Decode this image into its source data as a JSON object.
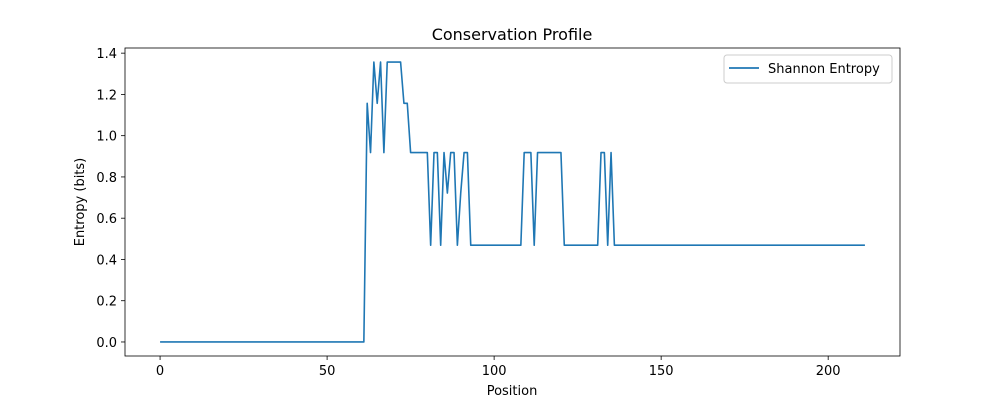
{
  "chart_data": {
    "type": "line",
    "title": "Conservation Profile",
    "xlabel": "Position",
    "ylabel": "Entropy (bits)",
    "xlim": [
      -10.5,
      221.5
    ],
    "ylim": [
      -0.068,
      1.425
    ],
    "x_ticks": [
      0,
      50,
      100,
      150,
      200
    ],
    "y_ticks": [
      0.0,
      0.2,
      0.4,
      0.6,
      0.8,
      1.0,
      1.2,
      1.4
    ],
    "x_tick_labels": [
      "0",
      "50",
      "100",
      "150",
      "200"
    ],
    "y_tick_labels": [
      "0.0",
      "0.2",
      "0.4",
      "0.6",
      "0.8",
      "1.0",
      "1.2",
      "1.4"
    ],
    "grid": false,
    "legend_position": "top-right",
    "series": [
      {
        "name": "Shannon Entropy",
        "color": "#1f77b4",
        "points": [
          [
            0,
            0.0
          ],
          [
            61,
            0.0
          ],
          [
            62,
            1.157
          ],
          [
            63,
            0.918
          ],
          [
            64,
            1.357
          ],
          [
            65,
            1.157
          ],
          [
            66,
            1.357
          ],
          [
            67,
            0.918
          ],
          [
            68,
            1.357
          ],
          [
            72,
            1.357
          ],
          [
            73,
            1.157
          ],
          [
            74,
            1.157
          ],
          [
            75,
            0.918
          ],
          [
            80,
            0.918
          ],
          [
            81,
            0.469
          ],
          [
            82,
            0.918
          ],
          [
            83,
            0.918
          ],
          [
            84,
            0.469
          ],
          [
            85,
            0.918
          ],
          [
            86,
            0.722
          ],
          [
            87,
            0.918
          ],
          [
            88,
            0.918
          ],
          [
            89,
            0.469
          ],
          [
            90,
            0.722
          ],
          [
            91,
            0.918
          ],
          [
            92,
            0.918
          ],
          [
            93,
            0.469
          ],
          [
            108,
            0.469
          ],
          [
            109,
            0.918
          ],
          [
            111,
            0.918
          ],
          [
            112,
            0.469
          ],
          [
            113,
            0.918
          ],
          [
            120,
            0.918
          ],
          [
            121,
            0.469
          ],
          [
            131,
            0.469
          ],
          [
            132,
            0.918
          ],
          [
            133,
            0.918
          ],
          [
            134,
            0.469
          ],
          [
            135,
            0.918
          ],
          [
            136,
            0.469
          ],
          [
            211,
            0.469
          ]
        ]
      }
    ]
  }
}
